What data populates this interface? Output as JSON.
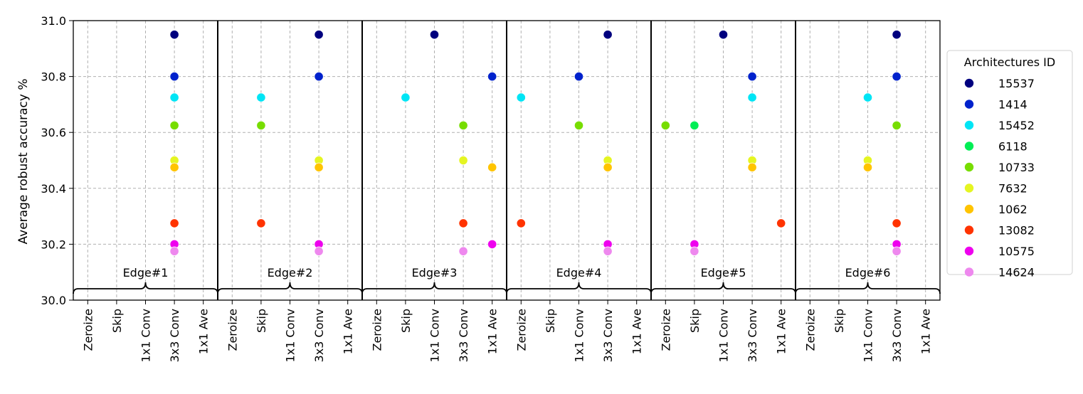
{
  "chart_data": {
    "type": "scatter",
    "title": "",
    "xlabel": "",
    "ylabel": "Average robust accuracy %",
    "ylim": [
      30.0,
      31.0
    ],
    "yticks": [
      "30.0",
      "30.2",
      "30.4",
      "30.6",
      "30.8",
      "31.0"
    ],
    "categories": [
      "Zeroize",
      "Skip",
      "1x1 Conv",
      "3x3 Conv",
      "1x1 Ave"
    ],
    "groups": [
      "Edge#1",
      "Edge#2",
      "Edge#3",
      "Edge#4",
      "Edge#5",
      "Edge#6"
    ],
    "grid": true,
    "legend": {
      "title": "Architectures ID",
      "placement": "right"
    },
    "series": [
      {
        "name": "15537",
        "color": "#00007f",
        "y": 30.95,
        "ops": [
          "3x3 Conv",
          "3x3 Conv",
          "1x1 Conv",
          "3x3 Conv",
          "1x1 Conv",
          "3x3 Conv"
        ]
      },
      {
        "name": "1414",
        "color": "#0022cc",
        "y": 30.8,
        "ops": [
          "3x3 Conv",
          "3x3 Conv",
          "1x1 Ave",
          "1x1 Conv",
          "3x3 Conv",
          "3x3 Conv"
        ]
      },
      {
        "name": "15452",
        "color": "#00e5f5",
        "y": 30.725,
        "ops": [
          "3x3 Conv",
          "Skip",
          "Skip",
          "Zeroize",
          "3x3 Conv",
          "1x1 Conv"
        ]
      },
      {
        "name": "6118",
        "color": "#00ee55",
        "y": 30.625,
        "ops": [
          "3x3 Conv",
          "Skip",
          "3x3 Conv",
          "1x1 Conv",
          "Skip",
          "3x3 Conv"
        ]
      },
      {
        "name": "10733",
        "color": "#77dd00",
        "y": 30.625,
        "ops": [
          "3x3 Conv",
          "Skip",
          "3x3 Conv",
          "1x1 Conv",
          "Zeroize",
          "3x3 Conv"
        ]
      },
      {
        "name": "7632",
        "color": "#e5f522",
        "y": 30.5,
        "ops": [
          "3x3 Conv",
          "3x3 Conv",
          "3x3 Conv",
          "3x3 Conv",
          "3x3 Conv",
          "1x1 Conv"
        ]
      },
      {
        "name": "1062",
        "color": "#ffc400",
        "y": 30.475,
        "ops": [
          "3x3 Conv",
          "3x3 Conv",
          "1x1 Ave",
          "3x3 Conv",
          "3x3 Conv",
          "1x1 Conv"
        ]
      },
      {
        "name": "13082",
        "color": "#ff3300",
        "y": 30.275,
        "ops": [
          "3x3 Conv",
          "Skip",
          "3x3 Conv",
          "Zeroize",
          "1x1 Ave",
          "3x3 Conv"
        ]
      },
      {
        "name": "10575",
        "color": "#ee00ee",
        "y": 30.2,
        "ops": [
          "3x3 Conv",
          "3x3 Conv",
          "1x1 Ave",
          "3x3 Conv",
          "Skip",
          "3x3 Conv"
        ]
      },
      {
        "name": "14624",
        "color": "#ee88ee",
        "y": 30.175,
        "ops": [
          "3x3 Conv",
          "3x3 Conv",
          "3x3 Conv",
          "3x3 Conv",
          "Skip",
          "3x3 Conv"
        ]
      }
    ]
  }
}
